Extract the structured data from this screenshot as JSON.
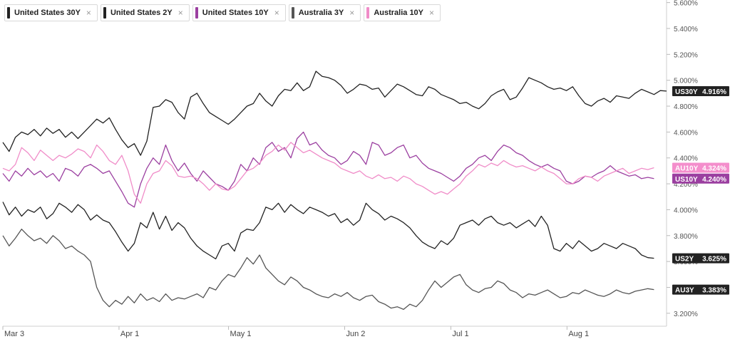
{
  "legend": [
    {
      "label": "United States 30Y",
      "color": "#222222",
      "close": "×"
    },
    {
      "label": "United States 2Y",
      "color": "#222222",
      "close": "×"
    },
    {
      "label": "United States 10Y",
      "color": "#9b3fa0",
      "close": "×"
    },
    {
      "label": "Australia 3Y",
      "color": "#555555",
      "close": "×"
    },
    {
      "label": "Australia 10Y",
      "color": "#f08cc8",
      "close": "×"
    }
  ],
  "chart_data": {
    "type": "line",
    "x_ticks": [
      "Mar 3",
      "Apr 1",
      "May 1",
      "Jun 2",
      "Jul 1",
      "Aug 1"
    ],
    "y_ticks": [
      "3.200%",
      "3.400%",
      "3.600%",
      "3.800%",
      "4.000%",
      "4.200%",
      "4.400%",
      "4.600%",
      "4.800%",
      "5.000%",
      "5.200%",
      "5.400%",
      "5.600%"
    ],
    "ylim": [
      3.1,
      5.62
    ],
    "grid": false,
    "legend_position": "top-left",
    "series": [
      {
        "name": "United States 30Y",
        "color": "#222222",
        "tag": "US30Y",
        "last_label": "4.916%",
        "tag_color": "#222222",
        "values": [
          4.52,
          4.45,
          4.56,
          4.6,
          4.58,
          4.62,
          4.57,
          4.63,
          4.59,
          4.62,
          4.56,
          4.6,
          4.55,
          4.6,
          4.65,
          4.7,
          4.67,
          4.71,
          4.62,
          4.54,
          4.48,
          4.51,
          4.42,
          4.53,
          4.79,
          4.8,
          4.85,
          4.83,
          4.75,
          4.7,
          4.87,
          4.9,
          4.82,
          4.75,
          4.72,
          4.69,
          4.66,
          4.7,
          4.75,
          4.8,
          4.82,
          4.9,
          4.84,
          4.8,
          4.88,
          4.93,
          4.92,
          4.98,
          4.92,
          4.95,
          5.07,
          5.03,
          5.02,
          5.0,
          4.96,
          4.9,
          4.93,
          4.97,
          4.96,
          4.93,
          4.94,
          4.87,
          4.92,
          4.97,
          4.95,
          4.92,
          4.89,
          4.88,
          4.95,
          4.93,
          4.89,
          4.87,
          4.85,
          4.82,
          4.83,
          4.8,
          4.78,
          4.82,
          4.88,
          4.91,
          4.93,
          4.85,
          4.87,
          4.94,
          5.02,
          5.0,
          4.98,
          4.95,
          4.93,
          4.94,
          4.92,
          4.95,
          4.88,
          4.82,
          4.8,
          4.84,
          4.86,
          4.83,
          4.88,
          4.87,
          4.86,
          4.9,
          4.93,
          4.91,
          4.89,
          4.92,
          4.916
        ]
      },
      {
        "name": "United States 10Y",
        "color": "#9b3fa0",
        "tag": "US10Y",
        "last_label": "4.240%",
        "tag_color": "#9b3fa0",
        "values": [
          4.28,
          4.22,
          4.3,
          4.26,
          4.32,
          4.27,
          4.3,
          4.25,
          4.28,
          4.22,
          4.32,
          4.3,
          4.26,
          4.33,
          4.35,
          4.32,
          4.28,
          4.3,
          4.22,
          4.14,
          4.05,
          4.02,
          4.2,
          4.32,
          4.4,
          4.35,
          4.5,
          4.38,
          4.3,
          4.36,
          4.28,
          4.22,
          4.3,
          4.25,
          4.2,
          4.18,
          4.15,
          4.22,
          4.35,
          4.3,
          4.4,
          4.35,
          4.48,
          4.52,
          4.45,
          4.48,
          4.4,
          4.55,
          4.6,
          4.5,
          4.52,
          4.46,
          4.42,
          4.4,
          4.35,
          4.38,
          4.45,
          4.42,
          4.35,
          4.52,
          4.5,
          4.42,
          4.44,
          4.48,
          4.5,
          4.4,
          4.42,
          4.36,
          4.32,
          4.3,
          4.28,
          4.25,
          4.22,
          4.26,
          4.32,
          4.35,
          4.4,
          4.42,
          4.38,
          4.45,
          4.5,
          4.48,
          4.44,
          4.42,
          4.38,
          4.35,
          4.33,
          4.35,
          4.32,
          4.3,
          4.22,
          4.2,
          4.22,
          4.26,
          4.25,
          4.28,
          4.3,
          4.34,
          4.3,
          4.28,
          4.26,
          4.27,
          4.24,
          4.25,
          4.24
        ]
      },
      {
        "name": "Australia 10Y",
        "color": "#f08cc8",
        "tag": "AU10Y",
        "last_label": "4.324%",
        "tag_color": "#f48ecc",
        "values": [
          4.32,
          4.3,
          4.35,
          4.48,
          4.44,
          4.38,
          4.46,
          4.42,
          4.38,
          4.42,
          4.4,
          4.43,
          4.47,
          4.45,
          4.4,
          4.5,
          4.45,
          4.38,
          4.35,
          4.42,
          4.3,
          4.12,
          4.05,
          4.2,
          4.28,
          4.3,
          4.38,
          4.34,
          4.26,
          4.25,
          4.26,
          4.24,
          4.2,
          4.15,
          4.2,
          4.16,
          4.15,
          4.18,
          4.24,
          4.3,
          4.32,
          4.36,
          4.42,
          4.45,
          4.5,
          4.46,
          4.52,
          4.48,
          4.44,
          4.46,
          4.43,
          4.4,
          4.38,
          4.36,
          4.32,
          4.3,
          4.28,
          4.3,
          4.26,
          4.24,
          4.27,
          4.24,
          4.25,
          4.22,
          4.26,
          4.24,
          4.2,
          4.18,
          4.15,
          4.12,
          4.14,
          4.12,
          4.16,
          4.2,
          4.26,
          4.3,
          4.35,
          4.33,
          4.36,
          4.34,
          4.38,
          4.35,
          4.33,
          4.34,
          4.32,
          4.3,
          4.33,
          4.3,
          4.28,
          4.24,
          4.2,
          4.2,
          4.24,
          4.26,
          4.25,
          4.22,
          4.26,
          4.28,
          4.3,
          4.32,
          4.28,
          4.3,
          4.32,
          4.31,
          4.324
        ]
      },
      {
        "name": "United States 2Y",
        "color": "#222222",
        "tag": "US2Y",
        "last_label": "3.625%",
        "tag_color": "#222222",
        "values": [
          4.06,
          3.96,
          4.02,
          3.95,
          4.0,
          3.98,
          4.02,
          3.93,
          3.97,
          4.05,
          4.02,
          3.98,
          4.04,
          4.0,
          3.92,
          3.96,
          3.92,
          3.9,
          3.83,
          3.75,
          3.68,
          3.74,
          3.9,
          3.86,
          3.98,
          3.85,
          3.95,
          3.84,
          3.9,
          3.86,
          3.78,
          3.72,
          3.68,
          3.65,
          3.62,
          3.72,
          3.74,
          3.68,
          3.82,
          3.85,
          3.84,
          3.9,
          4.02,
          4.0,
          4.05,
          3.98,
          4.04,
          4.0,
          3.97,
          4.02,
          4.0,
          3.98,
          3.95,
          3.97,
          3.9,
          3.93,
          3.88,
          3.92,
          4.05,
          4.0,
          3.97,
          3.92,
          3.95,
          3.93,
          3.9,
          3.86,
          3.8,
          3.75,
          3.72,
          3.7,
          3.76,
          3.73,
          3.78,
          3.88,
          3.9,
          3.92,
          3.88,
          3.93,
          3.95,
          3.9,
          3.88,
          3.9,
          3.86,
          3.89,
          3.92,
          3.87,
          3.95,
          3.88,
          3.7,
          3.68,
          3.74,
          3.7,
          3.76,
          3.72,
          3.68,
          3.7,
          3.74,
          3.72,
          3.7,
          3.74,
          3.72,
          3.7,
          3.65,
          3.63,
          3.625
        ]
      },
      {
        "name": "Australia 3Y",
        "color": "#555555",
        "tag": "AU3Y",
        "last_label": "3.383%",
        "tag_color": "#222222",
        "values": [
          3.8,
          3.72,
          3.78,
          3.85,
          3.8,
          3.76,
          3.78,
          3.74,
          3.8,
          3.76,
          3.7,
          3.72,
          3.68,
          3.65,
          3.6,
          3.4,
          3.3,
          3.25,
          3.3,
          3.27,
          3.33,
          3.28,
          3.35,
          3.3,
          3.32,
          3.29,
          3.35,
          3.3,
          3.32,
          3.31,
          3.33,
          3.35,
          3.32,
          3.4,
          3.38,
          3.45,
          3.5,
          3.48,
          3.55,
          3.63,
          3.58,
          3.65,
          3.55,
          3.5,
          3.45,
          3.42,
          3.48,
          3.45,
          3.4,
          3.38,
          3.35,
          3.33,
          3.32,
          3.35,
          3.33,
          3.36,
          3.32,
          3.3,
          3.33,
          3.34,
          3.29,
          3.27,
          3.24,
          3.25,
          3.23,
          3.27,
          3.25,
          3.3,
          3.38,
          3.45,
          3.4,
          3.44,
          3.48,
          3.5,
          3.42,
          3.38,
          3.36,
          3.39,
          3.4,
          3.45,
          3.43,
          3.38,
          3.36,
          3.32,
          3.35,
          3.34,
          3.36,
          3.38,
          3.35,
          3.32,
          3.33,
          3.36,
          3.35,
          3.38,
          3.36,
          3.34,
          3.33,
          3.35,
          3.38,
          3.36,
          3.35,
          3.37,
          3.38,
          3.39,
          3.383
        ]
      }
    ]
  }
}
